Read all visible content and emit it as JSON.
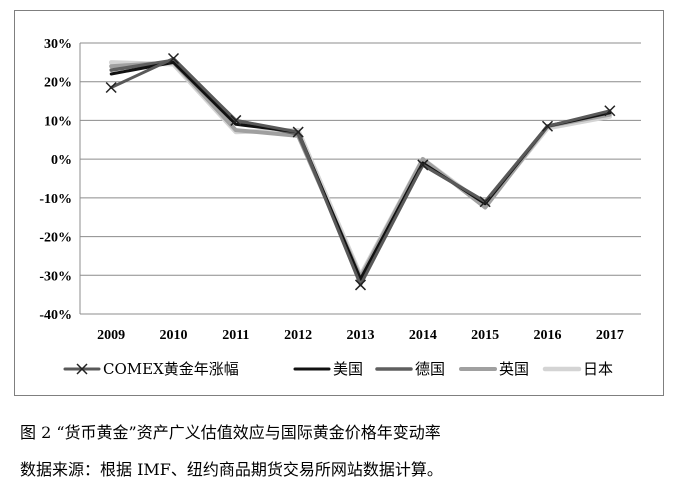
{
  "chart_data": {
    "type": "line",
    "categories": [
      "2009",
      "2010",
      "2011",
      "2012",
      "2013",
      "2014",
      "2015",
      "2016",
      "2017"
    ],
    "y_ticks": [
      "30%",
      "20%",
      "10%",
      "0%",
      "-10%",
      "-20%",
      "-30%",
      "-40%"
    ],
    "ylim": [
      -40,
      30
    ],
    "y_unit": "%",
    "grid": true,
    "legend_position": "bottom",
    "series": [
      {
        "name": "COMEX黄金年涨幅",
        "marker": "x",
        "color": "#595959",
        "values": [
          18.5,
          26.0,
          10.0,
          7.0,
          -32.5,
          -1.5,
          -11.0,
          8.5,
          12.5
        ]
      },
      {
        "name": "美国",
        "marker": "none",
        "color": "#111111",
        "values": [
          22.0,
          25.0,
          9.0,
          7.0,
          -31.0,
          -1.0,
          -11.5,
          8.5,
          12.0
        ]
      },
      {
        "name": "德国",
        "marker": "none",
        "color": "#5f5f5f",
        "values": [
          23.0,
          25.5,
          10.0,
          6.5,
          -31.0,
          -1.5,
          -11.0,
          8.5,
          12.0
        ]
      },
      {
        "name": "英国",
        "marker": "none",
        "color": "#a0a0a0",
        "values": [
          24.0,
          25.0,
          7.5,
          6.0,
          -30.5,
          0.0,
          -12.5,
          8.5,
          11.5
        ]
      },
      {
        "name": "日本",
        "marker": "none",
        "color": "#d4d4d4",
        "values": [
          25.0,
          24.5,
          7.0,
          7.5,
          -30.0,
          0.0,
          -12.0,
          8.0,
          11.0
        ]
      }
    ]
  },
  "caption": {
    "figure": "图 2 “货币黄金”资产广义估值效应与国际黄金价格年变动率",
    "source": "数据来源：根据 IMF、纽约商品期货交易所网站数据计算。"
  }
}
